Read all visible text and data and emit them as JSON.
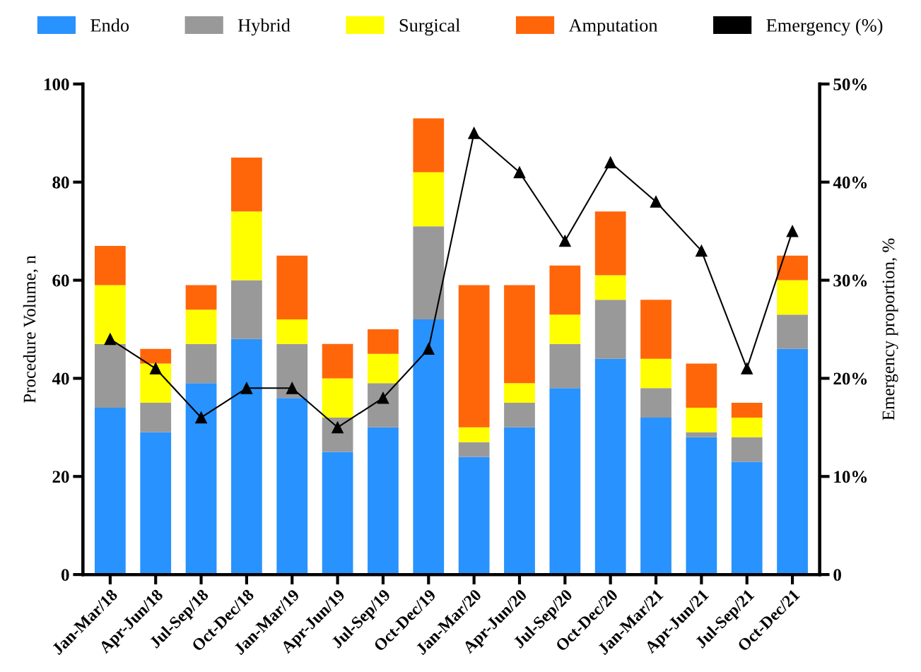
{
  "chart_data": {
    "type": "bar",
    "stacked": true,
    "xlabel": null,
    "ylabel": "Procedure Volume, n",
    "y2label": "Emergency proportion, %",
    "categories": [
      "Jan-Mar/18",
      "Apr-Jun/18",
      "Jul-Sep/18",
      "Oct-Dec/18",
      "Jan-Mar/19",
      "Apr-Jun/19",
      "Jul-Sep/19",
      "Oct-Dec/19",
      "Jan-Mar/20",
      "Apr-Jun/20",
      "Jul-Sep/20",
      "Oct-Dec/20",
      "Jan-Mar/21",
      "Apr-Jun/21",
      "Jul-Sep/21",
      "Oct-Dec/21"
    ],
    "series": [
      {
        "name": "Endo",
        "color": "#2892fe",
        "values": [
          34,
          29,
          39,
          48,
          36,
          25,
          30,
          52,
          24,
          30,
          38,
          44,
          32,
          28,
          23,
          46
        ]
      },
      {
        "name": "Hybrid",
        "color": "#999999",
        "values": [
          13,
          6,
          8,
          12,
          11,
          7,
          9,
          19,
          3,
          5,
          9,
          12,
          6,
          1,
          5,
          7
        ]
      },
      {
        "name": "Surgical",
        "color": "#ffff00",
        "values": [
          12,
          8,
          7,
          14,
          5,
          8,
          6,
          11,
          3,
          4,
          6,
          5,
          6,
          5,
          4,
          7
        ]
      },
      {
        "name": "Amputation",
        "color": "#ff660a",
        "values": [
          8,
          3,
          5,
          11,
          13,
          7,
          5,
          11,
          29,
          20,
          10,
          13,
          12,
          9,
          3,
          5
        ]
      },
      {
        "name": "Emergency (%)",
        "type": "line",
        "axis": "y2",
        "color": "#000000",
        "marker": "triangle",
        "line_style": "solid",
        "values": [
          24,
          21,
          16,
          19,
          19,
          15,
          18,
          23,
          45,
          41,
          34,
          42,
          38,
          33,
          21,
          35
        ]
      }
    ],
    "ylim": [
      0,
      100
    ],
    "yticks": [
      0,
      20,
      40,
      60,
      80,
      100
    ],
    "y2lim": [
      0,
      50
    ],
    "y2ticks": [
      0,
      {
        "value": 10,
        "label": "10%"
      },
      {
        "value": 20,
        "label": "20%"
      },
      {
        "value": 30,
        "label": "30%"
      },
      {
        "value": 40,
        "label": "40%"
      },
      {
        "value": 50,
        "label": "50%"
      }
    ],
    "legend": "top",
    "grid": false
  }
}
